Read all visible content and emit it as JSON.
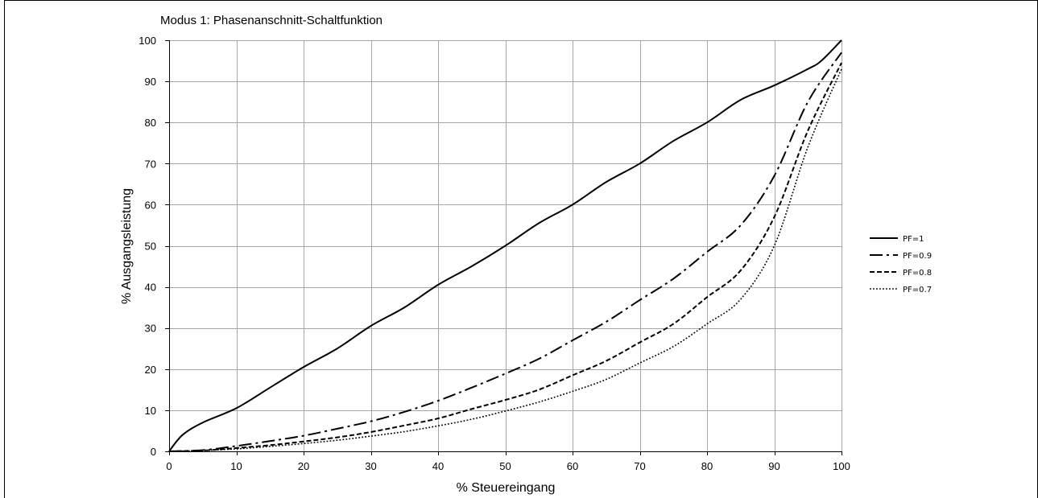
{
  "chart_data": {
    "type": "line",
    "title": "Modus 1: Phasenanschnitt-Schaltfunktion",
    "xlabel": "% Steuereingang",
    "ylabel": "% Ausgangsleistung",
    "xlim": [
      0,
      100
    ],
    "ylim": [
      0,
      100
    ],
    "xticks": [
      "0",
      "10",
      "20",
      "30",
      "40",
      "50",
      "60",
      "70",
      "80",
      "90",
      "100"
    ],
    "yticks": [
      "0",
      "10",
      "20",
      "30",
      "40",
      "50",
      "60",
      "70",
      "80",
      "90",
      "100"
    ],
    "grid": true,
    "legend_position": "right",
    "series": [
      {
        "name": "PF=1",
        "line_style": "solid",
        "color": "#000000",
        "x": [
          0,
          2,
          5,
          10,
          15,
          20,
          25,
          30,
          35,
          40,
          45,
          50,
          55,
          60,
          65,
          70,
          75,
          80,
          85,
          90,
          95,
          97,
          100
        ],
        "y": [
          0,
          4,
          7,
          10.5,
          15.5,
          20.5,
          25,
          30.5,
          35,
          40.5,
          45,
          50,
          55.5,
          60,
          65.5,
          70,
          75.5,
          80,
          85.5,
          89,
          93,
          95,
          100
        ]
      },
      {
        "name": "PF=0.9",
        "line_style": "dashdot",
        "color": "#000000",
        "x": [
          0,
          5,
          10,
          15,
          20,
          25,
          30,
          35,
          40,
          45,
          50,
          55,
          60,
          65,
          70,
          75,
          80,
          85,
          90,
          95,
          100
        ],
        "y": [
          0,
          0.3,
          1.3,
          2.5,
          3.8,
          5.5,
          7.3,
          9.6,
          12.3,
          15.5,
          18.9,
          22.5,
          27,
          31.5,
          36.8,
          42,
          48.5,
          55,
          67,
          85,
          97
        ]
      },
      {
        "name": "PF=0.8",
        "line_style": "dashed",
        "color": "#000000",
        "x": [
          0,
          5,
          10,
          15,
          20,
          25,
          30,
          35,
          40,
          45,
          50,
          55,
          60,
          65,
          70,
          75,
          80,
          85,
          90,
          95,
          100
        ],
        "y": [
          0,
          0.2,
          0.8,
          1.5,
          2.4,
          3.4,
          4.7,
          6.3,
          8,
          10.3,
          12.5,
          15,
          18.5,
          22,
          26.5,
          31,
          37.5,
          44,
          57,
          78,
          94.5
        ]
      },
      {
        "name": "PF=0.7",
        "line_style": "dotted",
        "color": "#000000",
        "x": [
          0,
          5,
          10,
          15,
          20,
          25,
          30,
          35,
          40,
          45,
          50,
          55,
          60,
          65,
          70,
          75,
          80,
          85,
          90,
          95,
          100
        ],
        "y": [
          0,
          0.2,
          0.6,
          1.2,
          1.9,
          2.7,
          3.7,
          4.8,
          6.2,
          7.8,
          9.8,
          12,
          14.6,
          17.5,
          21.5,
          25.5,
          31,
          37,
          50,
          74,
          93
        ]
      }
    ]
  }
}
